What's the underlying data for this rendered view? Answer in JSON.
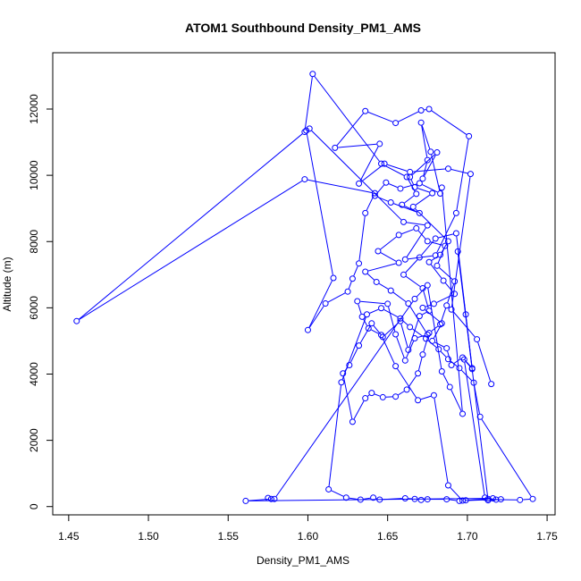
{
  "chart_data": {
    "type": "scatter",
    "title": "ATOM1 Southbound Density_PM1_AMS",
    "xlabel": "Density_PM1_AMS",
    "ylabel": "Altitude (m)",
    "xlim": [
      1.44,
      1.755
    ],
    "ylim": [
      -250,
      13700
    ],
    "x_ticks": [
      1.45,
      1.5,
      1.55,
      1.6,
      1.65,
      1.7,
      1.75
    ],
    "x_tick_labels": [
      "1.45",
      "1.50",
      "1.55",
      "1.60",
      "1.65",
      "1.70",
      "1.75"
    ],
    "y_ticks": [
      0,
      2000,
      4000,
      6000,
      8000,
      10000,
      12000
    ],
    "y_tick_labels": [
      "0",
      "2000",
      "4000",
      "6000",
      "8000",
      "10000",
      "12000"
    ],
    "grid": false,
    "connected": true,
    "colors": {
      "series": "#0000ff",
      "axis": "#000000",
      "background": "#ffffff"
    },
    "series": [
      {
        "points": [
          [
            1.715,
            3700
          ],
          [
            1.706,
            5050
          ],
          [
            1.69,
            5950
          ],
          [
            1.702,
            10040
          ],
          [
            1.688,
            10200
          ],
          [
            1.664,
            10100
          ],
          [
            1.648,
            10350
          ],
          [
            1.632,
            9750
          ],
          [
            1.645,
            10950
          ],
          [
            1.617,
            10830
          ],
          [
            1.636,
            11940
          ],
          [
            1.655,
            11580
          ],
          [
            1.671,
            11960
          ],
          [
            1.676,
            12000
          ],
          [
            1.701,
            11180
          ],
          [
            1.693,
            8860
          ],
          [
            1.68,
            7580
          ],
          [
            1.661,
            7460
          ],
          [
            1.675,
            8490
          ],
          [
            1.66,
            8590
          ],
          [
            1.601,
            11410
          ],
          [
            1.599,
            11350
          ],
          [
            1.616,
            6900
          ],
          [
            1.6,
            5330
          ],
          [
            1.611,
            6130
          ],
          [
            1.625,
            6490
          ],
          [
            1.628,
            6880
          ],
          [
            1.632,
            7340
          ],
          [
            1.636,
            8860
          ],
          [
            1.642,
            9460
          ],
          [
            1.598,
            9880
          ],
          [
            1.455,
            5600
          ],
          [
            1.598,
            11310
          ],
          [
            1.603,
            13060
          ],
          [
            1.646,
            10350
          ],
          [
            1.662,
            9950
          ],
          [
            1.668,
            9440
          ],
          [
            1.659,
            9110
          ],
          [
            1.67,
            8860
          ],
          [
            1.652,
            9180
          ],
          [
            1.642,
            9380
          ],
          [
            1.649,
            9780
          ],
          [
            1.658,
            9600
          ],
          [
            1.67,
            9760
          ],
          [
            1.683,
            9450
          ],
          [
            1.677,
            10710
          ],
          [
            1.671,
            11590
          ],
          [
            1.675,
            10460
          ],
          [
            1.672,
            9900
          ],
          [
            1.681,
            10690
          ],
          [
            1.664,
            9950
          ],
          [
            1.667,
            9640
          ],
          [
            1.678,
            9460
          ],
          [
            1.666,
            9050
          ],
          [
            1.688,
            8010
          ],
          [
            1.683,
            7600
          ],
          [
            1.676,
            7380
          ],
          [
            1.685,
            6820
          ],
          [
            1.692,
            6420
          ],
          [
            1.679,
            6120
          ],
          [
            1.672,
            6000
          ],
          [
            1.684,
            5530
          ],
          [
            1.678,
            5000
          ],
          [
            1.687,
            4780
          ],
          [
            1.69,
            4270
          ],
          [
            1.697,
            4500
          ],
          [
            1.703,
            4180
          ],
          [
            1.699,
            5800
          ],
          [
            1.694,
            7700
          ],
          [
            1.713,
            190
          ],
          [
            1.721,
            220
          ],
          [
            1.697,
            180
          ],
          [
            1.688,
            640
          ],
          [
            1.679,
            3360
          ],
          [
            1.669,
            3210
          ],
          [
            1.655,
            4240
          ],
          [
            1.646,
            5180
          ],
          [
            1.638,
            5380
          ],
          [
            1.634,
            5730
          ],
          [
            1.631,
            6200
          ],
          [
            1.65,
            6120
          ],
          [
            1.655,
            5200
          ],
          [
            1.661,
            4410
          ],
          [
            1.667,
            5080
          ],
          [
            1.675,
            5190
          ],
          [
            1.663,
            6130
          ],
          [
            1.652,
            6520
          ],
          [
            1.643,
            6780
          ],
          [
            1.636,
            7090
          ],
          [
            1.657,
            7360
          ],
          [
            1.644,
            7710
          ],
          [
            1.657,
            8200
          ],
          [
            1.668,
            8400
          ],
          [
            1.675,
            8010
          ],
          [
            1.686,
            7870
          ],
          [
            1.681,
            7270
          ],
          [
            1.692,
            6800
          ],
          [
            1.687,
            6070
          ],
          [
            1.683,
            5500
          ],
          [
            1.676,
            5240
          ],
          [
            1.672,
            4590
          ],
          [
            1.669,
            4020
          ],
          [
            1.662,
            3530
          ],
          [
            1.655,
            3320
          ],
          [
            1.647,
            3300
          ],
          [
            1.64,
            3430
          ],
          [
            1.636,
            3270
          ],
          [
            1.628,
            2560
          ],
          [
            1.622,
            4020
          ],
          [
            1.626,
            4270
          ],
          [
            1.632,
            4860
          ],
          [
            1.64,
            5530
          ],
          [
            1.647,
            5120
          ],
          [
            1.658,
            5600
          ],
          [
            1.663,
            4730
          ],
          [
            1.67,
            5750
          ],
          [
            1.676,
            5910
          ],
          [
            1.672,
            6590
          ],
          [
            1.66,
            7000
          ],
          [
            1.67,
            7520
          ],
          [
            1.68,
            8090
          ],
          [
            1.693,
            8250
          ],
          [
            1.703,
            4150
          ],
          [
            1.698,
            4440
          ],
          [
            1.711,
            270
          ],
          [
            1.718,
            210
          ],
          [
            1.733,
            200
          ],
          [
            1.741,
            230
          ],
          [
            1.708,
            2710
          ],
          [
            1.704,
            3740
          ],
          [
            1.695,
            4180
          ],
          [
            1.688,
            4450
          ],
          [
            1.682,
            4750
          ],
          [
            1.674,
            5070
          ],
          [
            1.664,
            5420
          ],
          [
            1.658,
            5680
          ],
          [
            1.646,
            5990
          ],
          [
            1.637,
            5800
          ],
          [
            1.621,
            3750
          ],
          [
            1.613,
            520
          ],
          [
            1.624,
            270
          ],
          [
            1.633,
            210
          ],
          [
            1.641,
            270
          ],
          [
            1.645,
            210
          ],
          [
            1.661,
            250
          ],
          [
            1.667,
            230
          ],
          [
            1.671,
            200
          ],
          [
            1.675,
            220
          ],
          [
            1.687,
            220
          ],
          [
            1.695,
            170
          ],
          [
            1.699,
            190
          ],
          [
            1.713,
            230
          ],
          [
            1.716,
            250
          ],
          [
            1.561,
            170
          ],
          [
            1.577,
            230
          ],
          [
            1.575,
            260
          ],
          [
            1.579,
            230
          ],
          [
            1.667,
            6270
          ],
          [
            1.675,
            6680
          ],
          [
            1.684,
            4080
          ],
          [
            1.689,
            3610
          ],
          [
            1.697,
            2800
          ],
          [
            1.684,
            9630
          ]
        ]
      }
    ]
  }
}
